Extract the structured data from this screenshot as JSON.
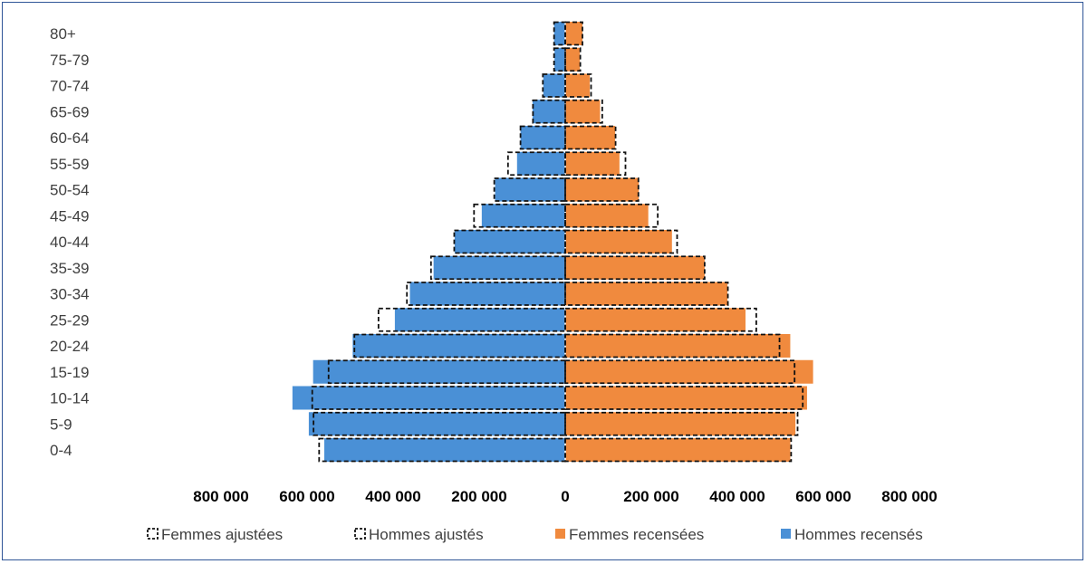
{
  "chart_data": {
    "type": "bar",
    "orientation": "horizontal-population-pyramid",
    "categories": [
      "0-4",
      "5-9",
      "10-14",
      "15-19",
      "20-24",
      "25-29",
      "30-34",
      "35-39",
      "40-44",
      "45-49",
      "50-54",
      "55-59",
      "60-64",
      "65-69",
      "70-74",
      "75-79",
      "80+"
    ],
    "series": [
      {
        "name": "Femmes ajustées",
        "style": "dashed-outline",
        "side": "right",
        "values": [
          525000,
          540000,
          552000,
          533000,
          498000,
          444000,
          378000,
          324000,
          260000,
          215000,
          170000,
          140000,
          117000,
          86000,
          60000,
          35000,
          40000
        ]
      },
      {
        "name": "Hommes ajustés",
        "style": "dashed-outline",
        "side": "left",
        "values": [
          572000,
          585000,
          588000,
          550000,
          490000,
          434000,
          368000,
          312000,
          258000,
          212000,
          165000,
          133000,
          104000,
          75000,
          52000,
          26000,
          26000
        ]
      },
      {
        "name": "Femmes recensées",
        "color": "#f08a3e",
        "side": "right",
        "values": [
          523000,
          535000,
          562000,
          576000,
          523000,
          419000,
          377000,
          324000,
          248000,
          193000,
          171000,
          126000,
          116000,
          81000,
          57000,
          34000,
          40000
        ]
      },
      {
        "name": "Hommes recensés",
        "color": "#4a90d6",
        "side": "left",
        "values": [
          560000,
          596000,
          634000,
          586000,
          494000,
          396000,
          361000,
          306000,
          257000,
          194000,
          163000,
          112000,
          104000,
          76000,
          51000,
          25000,
          26000
        ]
      }
    ],
    "x_ticks": [
      "800 000",
      "600 000",
      "400 000",
      "200 000",
      "0",
      "200 000",
      "400 000",
      "600 000",
      "800 000"
    ],
    "xlim": [
      -800000,
      800000
    ],
    "title": "",
    "xlabel": "",
    "ylabel": "",
    "grid": false,
    "legend_position": "bottom"
  },
  "colors": {
    "women": "#f08a3e",
    "men": "#4a90d6",
    "frame": "#2f5597"
  }
}
